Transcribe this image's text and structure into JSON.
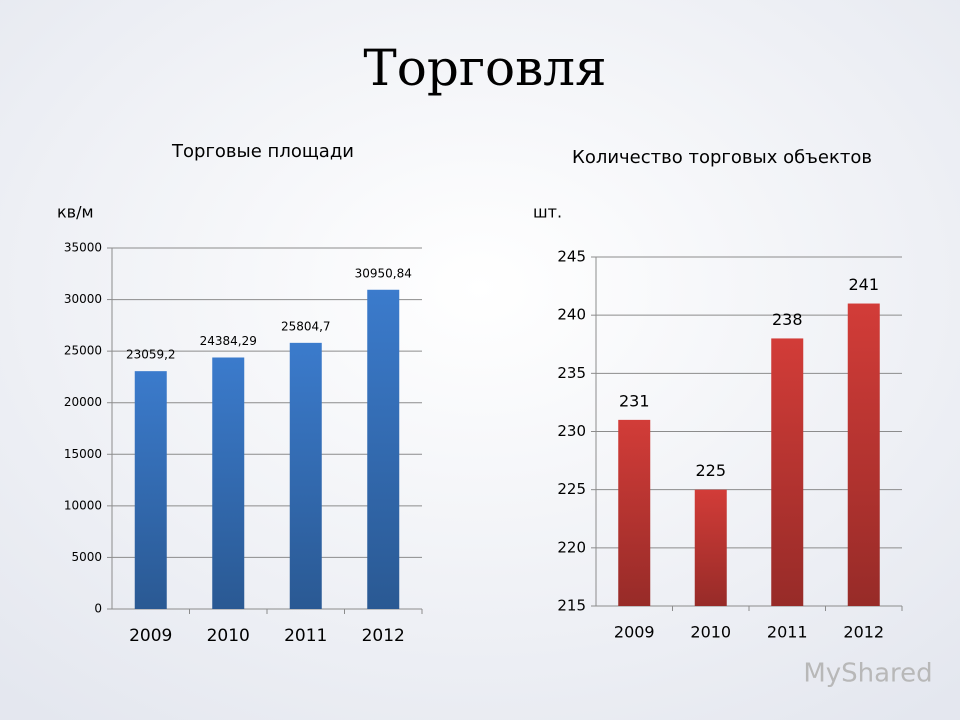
{
  "title": "Торговля",
  "watermark": "MyShared",
  "chart_data": [
    {
      "type": "bar",
      "title": "Торговые площади",
      "y_label": "кв/м",
      "categories": [
        "2009",
        "2010",
        "2011",
        "2012"
      ],
      "values": [
        23059.2,
        24384.29,
        25804.7,
        30950.84
      ],
      "value_labels": [
        "23059,2",
        "24384,29",
        "25804,7",
        "30950,84"
      ],
      "color": "#3b7bcc",
      "ylim": [
        0,
        35000
      ],
      "yticks": [
        0,
        5000,
        10000,
        15000,
        20000,
        25000,
        30000,
        35000
      ],
      "grid": true
    },
    {
      "type": "bar",
      "title": "Количество торговых объектов",
      "y_label": "шт.",
      "categories": [
        "2009",
        "2010",
        "2011",
        "2012"
      ],
      "values": [
        231,
        225,
        238,
        241
      ],
      "color": "#d23c38",
      "ylim": [
        215,
        245
      ],
      "yticks": [
        215,
        220,
        225,
        230,
        235,
        240,
        245
      ],
      "grid": true
    }
  ]
}
